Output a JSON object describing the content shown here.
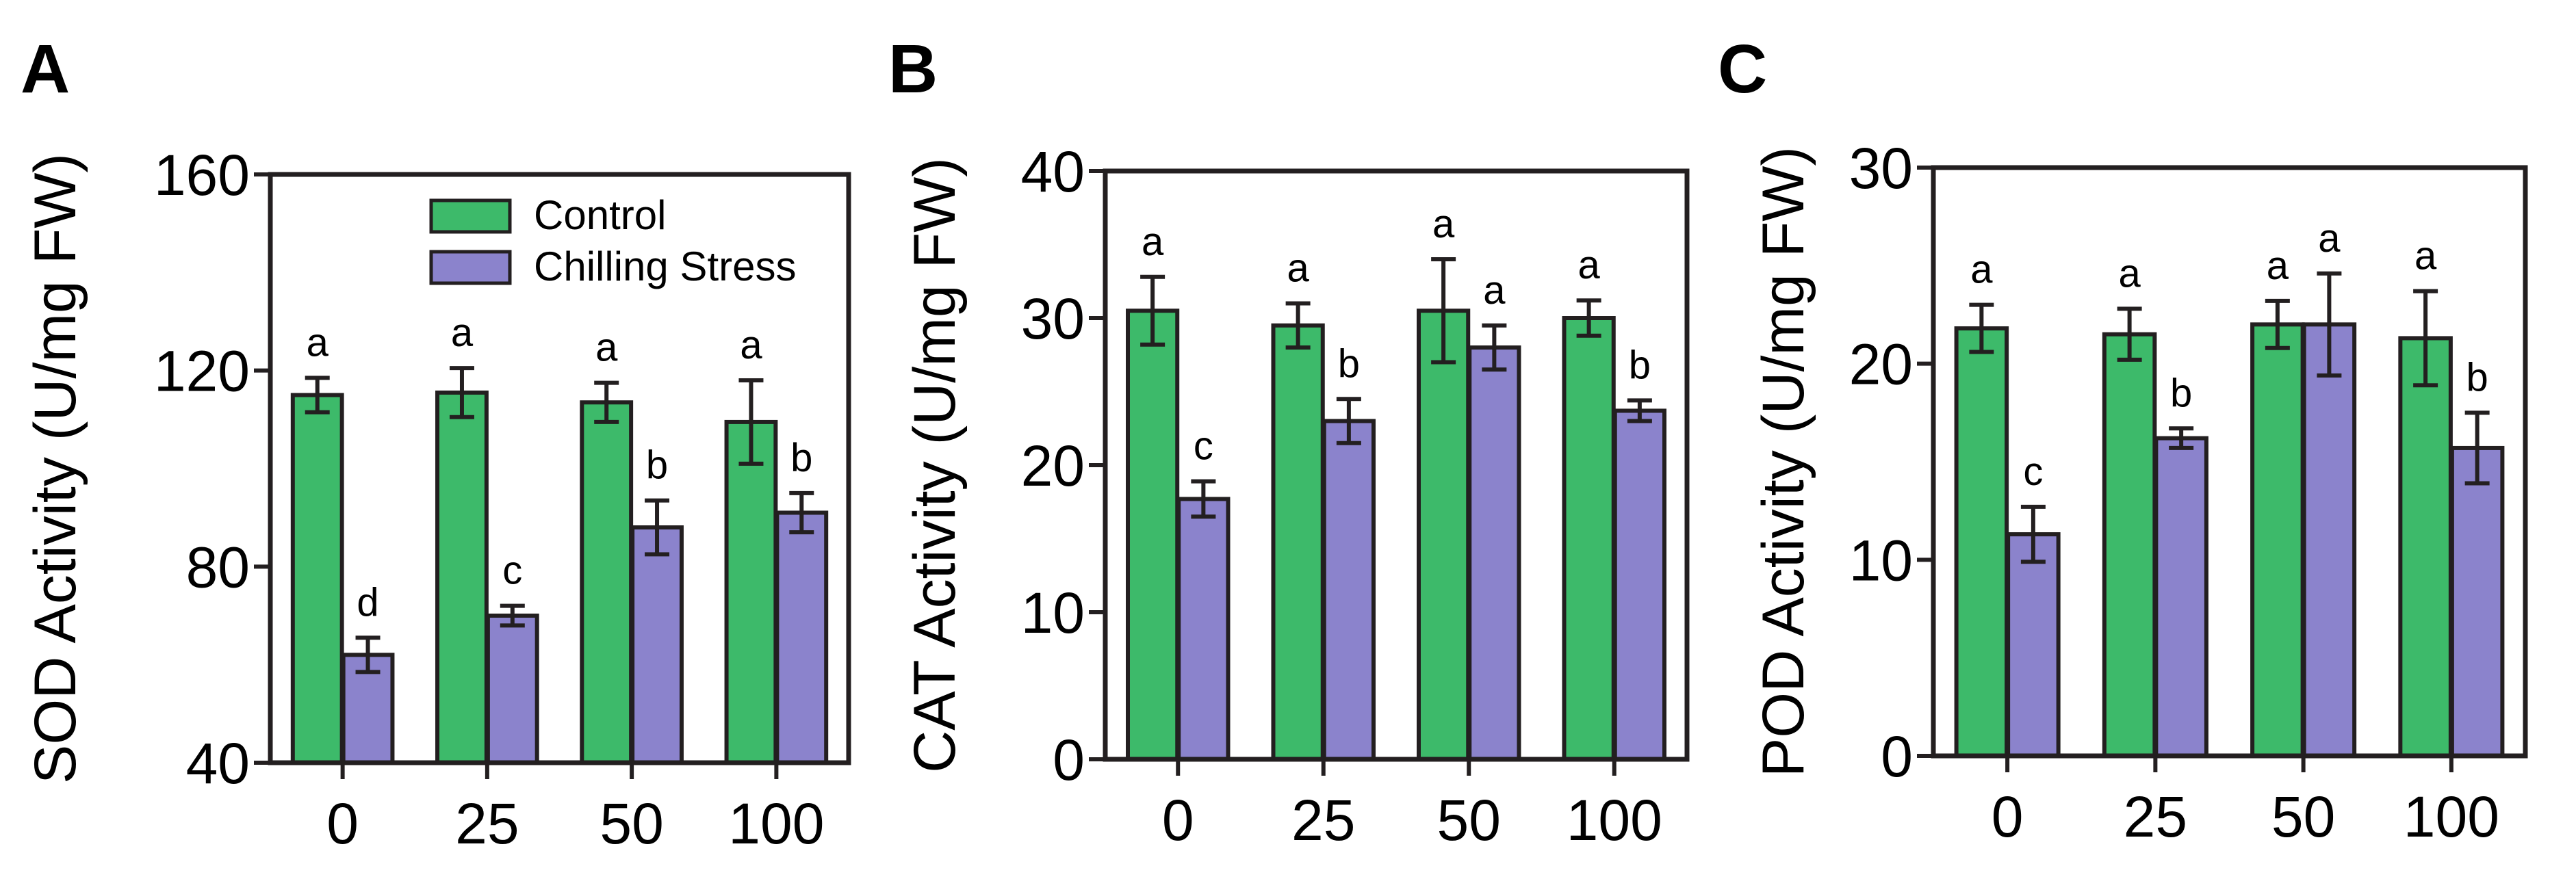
{
  "colors": {
    "control": "#3dba6a",
    "chilling": "#8b83cc",
    "ink": "#231f20"
  },
  "chart_data": [
    {
      "panel": "A",
      "type": "bar",
      "ylabel": "SOD Activity (U/mg FW)",
      "xlabel": "",
      "categories": [
        "0",
        "25",
        "50",
        "100"
      ],
      "ylim": [
        40,
        160
      ],
      "yticks": [
        40,
        80,
        120,
        160
      ],
      "legend": {
        "placement": "top-center",
        "entries": [
          "Control",
          "Chilling Stress"
        ]
      },
      "series": [
        {
          "name": "Control",
          "values": [
            115,
            115.5,
            113.5,
            109.5
          ],
          "errors": [
            3.5,
            5,
            4,
            8.5
          ],
          "letters": [
            "a",
            "a",
            "a",
            "a"
          ]
        },
        {
          "name": "Chilling Stress",
          "values": [
            62,
            70,
            88,
            91
          ],
          "errors": [
            3.5,
            2,
            5.5,
            4
          ],
          "letters": [
            "d",
            "c",
            "b",
            "b"
          ]
        }
      ]
    },
    {
      "panel": "B",
      "type": "bar",
      "ylabel": "CAT Activity (U/mg FW)",
      "xlabel": "",
      "categories": [
        "0",
        "25",
        "50",
        "100"
      ],
      "ylim": [
        0,
        40
      ],
      "yticks": [
        0,
        10,
        20,
        30,
        40
      ],
      "series": [
        {
          "name": "Control",
          "values": [
            30.5,
            29.5,
            30.5,
            30
          ],
          "errors": [
            2.3,
            1.5,
            3.5,
            1.2
          ],
          "letters": [
            "a",
            "a",
            "a",
            "a"
          ]
        },
        {
          "name": "Chilling Stress",
          "values": [
            17.7,
            23,
            28,
            23.7
          ],
          "errors": [
            1.2,
            1.5,
            1.5,
            0.7
          ],
          "letters": [
            "c",
            "b",
            "a",
            "b"
          ]
        }
      ]
    },
    {
      "panel": "C",
      "type": "bar",
      "ylabel": "POD Activity (U/mg FW)",
      "xlabel": "",
      "categories": [
        "0",
        "25",
        "50",
        "100"
      ],
      "ylim": [
        0,
        30
      ],
      "yticks": [
        0,
        10,
        20,
        30
      ],
      "series": [
        {
          "name": "Control",
          "values": [
            21.8,
            21.5,
            22,
            21.3
          ],
          "errors": [
            1.2,
            1.3,
            1.2,
            2.4
          ],
          "letters": [
            "a",
            "a",
            "a",
            "a"
          ]
        },
        {
          "name": "Chilling Stress",
          "values": [
            11.3,
            16.2,
            22,
            15.7
          ],
          "errors": [
            1.4,
            0.5,
            2.6,
            1.8
          ],
          "letters": [
            "c",
            "b",
            "a",
            "b"
          ]
        }
      ]
    }
  ]
}
